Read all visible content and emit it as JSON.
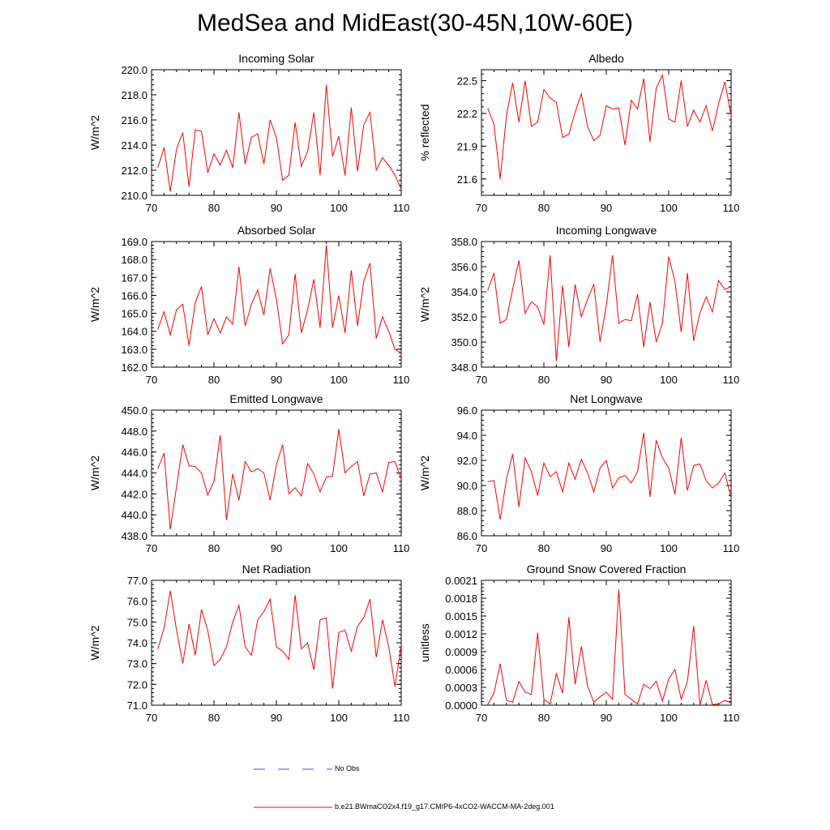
{
  "title": "MedSea and MidEast(30-45N,10W-60E)",
  "legend": {
    "obs_label": "No Obs",
    "obs_color": "#4b4bc8",
    "model_label": "b.e21.BWmaCO2x4.f19_g17.CMIP6-4xCO2-WACCM-MA-2deg.001",
    "model_color": "#ff0000"
  },
  "chart_data": [
    {
      "type": "line",
      "title": "Incoming Solar",
      "ylabel": "W/m^2",
      "xlim": [
        70,
        110
      ],
      "ylim": [
        210,
        220
      ],
      "xticks": [
        70,
        80,
        90,
        100,
        110
      ],
      "xtick_labels": [
        "70",
        "80",
        "90",
        "100",
        "110"
      ],
      "yticks": [
        210,
        212,
        214,
        216,
        218,
        220
      ],
      "ytick_labels": [
        "210.0",
        "212.0",
        "214.0",
        "216.0",
        "218.0",
        "220.0"
      ],
      "x": [
        71,
        72,
        73,
        74,
        75,
        76,
        77,
        78,
        79,
        80,
        81,
        82,
        83,
        84,
        85,
        86,
        87,
        88,
        89,
        90,
        91,
        92,
        93,
        94,
        95,
        96,
        97,
        98,
        99,
        100,
        101,
        102,
        103,
        104,
        105,
        106,
        107,
        108,
        109,
        110
      ],
      "values": [
        212.2,
        213.8,
        210.3,
        213.7,
        215.0,
        210.7,
        215.2,
        215.1,
        211.8,
        213.3,
        212.4,
        213.6,
        212.2,
        216.6,
        212.5,
        214.6,
        214.9,
        212.5,
        216.0,
        214.6,
        211.2,
        211.6,
        215.8,
        212.3,
        213.5,
        216.6,
        211.6,
        218.8,
        213.1,
        214.7,
        211.6,
        217.0,
        211.9,
        215.6,
        216.6,
        212.0,
        213.0,
        212.4,
        211.6,
        210.5
      ]
    },
    {
      "type": "line",
      "title": "Albedo",
      "ylabel": "% reflected",
      "xlim": [
        70,
        110
      ],
      "ylim": [
        21.45,
        22.6
      ],
      "xticks": [
        70,
        80,
        90,
        100,
        110
      ],
      "xtick_labels": [
        "70",
        "80",
        "90",
        "100",
        "110"
      ],
      "yticks": [
        21.6,
        21.9,
        22.2,
        22.5
      ],
      "ytick_labels": [
        "21.6",
        "21.9",
        "22.2",
        "22.5"
      ],
      "x": [
        71,
        72,
        73,
        74,
        75,
        76,
        77,
        78,
        79,
        80,
        81,
        82,
        83,
        84,
        85,
        86,
        87,
        88,
        89,
        90,
        91,
        92,
        93,
        94,
        95,
        96,
        97,
        98,
        99,
        100,
        101,
        102,
        103,
        104,
        105,
        106,
        107,
        108,
        109,
        110
      ],
      "values": [
        22.25,
        22.1,
        21.6,
        22.18,
        22.48,
        22.12,
        22.5,
        22.08,
        22.12,
        22.42,
        22.34,
        22.3,
        21.98,
        22.01,
        22.21,
        22.38,
        22.08,
        21.95,
        22.0,
        22.27,
        22.24,
        22.25,
        21.91,
        22.32,
        22.24,
        22.52,
        21.94,
        22.43,
        22.55,
        22.15,
        22.12,
        22.5,
        22.08,
        22.23,
        22.12,
        22.27,
        22.04,
        22.29,
        22.49,
        22.18
      ]
    },
    {
      "type": "line",
      "title": "Absorbed Solar",
      "ylabel": "W/m^2",
      "xlim": [
        70,
        110
      ],
      "ylim": [
        162,
        169
      ],
      "xticks": [
        70,
        80,
        90,
        100,
        110
      ],
      "xtick_labels": [
        "70",
        "80",
        "90",
        "100",
        "110"
      ],
      "yticks": [
        162,
        163,
        164,
        165,
        166,
        167,
        168,
        169
      ],
      "ytick_labels": [
        "162.0",
        "163.0",
        "164.0",
        "165.0",
        "166.0",
        "167.0",
        "168.0",
        "169.0"
      ],
      "x": [
        71,
        72,
        73,
        74,
        75,
        76,
        77,
        78,
        79,
        80,
        81,
        82,
        83,
        84,
        85,
        86,
        87,
        88,
        89,
        90,
        91,
        92,
        93,
        94,
        95,
        96,
        97,
        98,
        99,
        100,
        101,
        102,
        103,
        104,
        105,
        106,
        107,
        108,
        109,
        110
      ],
      "values": [
        164.1,
        165.1,
        163.8,
        165.2,
        165.5,
        163.2,
        165.6,
        166.5,
        163.8,
        164.7,
        163.9,
        164.8,
        164.4,
        167.6,
        164.3,
        165.5,
        166.3,
        164.9,
        167.5,
        165.8,
        163.3,
        163.8,
        167.2,
        163.9,
        165.2,
        166.9,
        164.2,
        168.8,
        164.2,
        166.0,
        163.9,
        167.4,
        164.3,
        166.8,
        167.8,
        163.6,
        164.8,
        164.0,
        163.0,
        162.8
      ]
    },
    {
      "type": "line",
      "title": "Incoming Longwave",
      "ylabel": "W/m^2",
      "xlim": [
        70,
        110
      ],
      "ylim": [
        348,
        358
      ],
      "xticks": [
        70,
        80,
        90,
        100,
        110
      ],
      "xtick_labels": [
        "70",
        "80",
        "90",
        "100",
        "110"
      ],
      "yticks": [
        348,
        350,
        352,
        354,
        356,
        358
      ],
      "ytick_labels": [
        "348.0",
        "350.0",
        "352.0",
        "354.0",
        "356.0",
        "358.0"
      ],
      "x": [
        71,
        72,
        73,
        74,
        75,
        76,
        77,
        78,
        79,
        80,
        81,
        82,
        83,
        84,
        85,
        86,
        87,
        88,
        89,
        90,
        91,
        92,
        93,
        94,
        95,
        96,
        97,
        98,
        99,
        100,
        101,
        102,
        103,
        104,
        105,
        106,
        107,
        108,
        109,
        110
      ],
      "values": [
        354.1,
        355.5,
        351.5,
        351.8,
        354.2,
        356.5,
        352.3,
        353.2,
        352.8,
        351.4,
        356.9,
        348.5,
        354.5,
        349.6,
        354.6,
        352.0,
        353.4,
        354.6,
        350.0,
        352.9,
        356.9,
        351.5,
        351.8,
        351.7,
        353.8,
        349.6,
        353.2,
        350.0,
        351.5,
        356.8,
        354.8,
        350.8,
        355.5,
        350.1,
        352.3,
        353.6,
        352.4,
        354.9,
        354.2,
        354.4
      ]
    },
    {
      "type": "line",
      "title": "Emitted Longwave",
      "ylabel": "W/m^2",
      "xlim": [
        70,
        110
      ],
      "ylim": [
        438,
        450
      ],
      "xticks": [
        70,
        80,
        90,
        100,
        110
      ],
      "xtick_labels": [
        "70",
        "80",
        "90",
        "100",
        "110"
      ],
      "yticks": [
        438,
        440,
        442,
        444,
        446,
        448,
        450
      ],
      "ytick_labels": [
        "438.0",
        "440.0",
        "442.0",
        "444.0",
        "446.0",
        "448.0",
        "450.0"
      ],
      "x": [
        71,
        72,
        73,
        74,
        75,
        76,
        77,
        78,
        79,
        80,
        81,
        82,
        83,
        84,
        85,
        86,
        87,
        88,
        89,
        90,
        91,
        92,
        93,
        94,
        95,
        96,
        97,
        98,
        99,
        100,
        101,
        102,
        103,
        104,
        105,
        106,
        107,
        108,
        109,
        110
      ],
      "values": [
        444.4,
        445.9,
        438.6,
        442.7,
        446.7,
        444.7,
        444.6,
        444.0,
        441.9,
        443.2,
        447.6,
        439.5,
        443.9,
        441.4,
        445.1,
        444.1,
        444.4,
        444.0,
        441.4,
        444.8,
        446.7,
        442.0,
        442.6,
        441.8,
        444.9,
        443.9,
        442.2,
        443.6,
        443.7,
        448.2,
        444.0,
        444.6,
        445.1,
        441.8,
        443.9,
        444.0,
        442.2,
        445.0,
        445.1,
        443.4
      ]
    },
    {
      "type": "line",
      "title": "Net Longwave",
      "ylabel": "W/m^2",
      "xlim": [
        70,
        110
      ],
      "ylim": [
        86,
        96
      ],
      "xticks": [
        70,
        80,
        90,
        100,
        110
      ],
      "xtick_labels": [
        "70",
        "80",
        "90",
        "100",
        "110"
      ],
      "yticks": [
        86,
        88,
        90,
        92,
        94,
        96
      ],
      "ytick_labels": [
        "86.0",
        "88.0",
        "90.0",
        "92.0",
        "94.0",
        "96.0"
      ],
      "x": [
        71,
        72,
        73,
        74,
        75,
        76,
        77,
        78,
        79,
        80,
        81,
        82,
        83,
        84,
        85,
        86,
        87,
        88,
        89,
        90,
        91,
        92,
        93,
        94,
        95,
        96,
        97,
        98,
        99,
        100,
        101,
        102,
        103,
        104,
        105,
        106,
        107,
        108,
        109,
        110
      ],
      "values": [
        90.3,
        90.4,
        87.3,
        90.5,
        92.5,
        88.3,
        92.2,
        91.1,
        89.2,
        91.8,
        90.7,
        91.1,
        89.5,
        91.8,
        90.5,
        92.1,
        91.0,
        89.5,
        91.4,
        92.0,
        89.8,
        90.6,
        90.8,
        90.2,
        91.1,
        94.2,
        89.1,
        93.6,
        92.2,
        91.4,
        89.3,
        93.8,
        89.6,
        91.6,
        91.7,
        90.4,
        89.8,
        90.2,
        91.0,
        89.0
      ]
    },
    {
      "type": "line",
      "title": "Net Radiation",
      "ylabel": "W/m^2",
      "xlim": [
        70,
        110
      ],
      "ylim": [
        71,
        77
      ],
      "xticks": [
        70,
        80,
        90,
        100,
        110
      ],
      "xtick_labels": [
        "70",
        "80",
        "90",
        "100",
        "110"
      ],
      "yticks": [
        71,
        72,
        73,
        74,
        75,
        76,
        77
      ],
      "ytick_labels": [
        "71.0",
        "72.0",
        "73.0",
        "74.0",
        "75.0",
        "76.0",
        "77.0"
      ],
      "x": [
        71,
        72,
        73,
        74,
        75,
        76,
        77,
        78,
        79,
        80,
        81,
        82,
        83,
        84,
        85,
        86,
        87,
        88,
        89,
        90,
        91,
        92,
        93,
        94,
        95,
        96,
        97,
        98,
        99,
        100,
        101,
        102,
        103,
        104,
        105,
        106,
        107,
        108,
        109,
        110
      ],
      "values": [
        73.7,
        74.7,
        76.5,
        74.6,
        73.0,
        74.9,
        73.4,
        75.6,
        74.6,
        72.9,
        73.2,
        73.8,
        75.0,
        75.8,
        73.8,
        73.4,
        75.1,
        75.5,
        76.1,
        73.8,
        73.6,
        73.2,
        76.3,
        73.7,
        74.0,
        72.7,
        75.1,
        75.2,
        71.8,
        74.5,
        74.6,
        73.6,
        74.8,
        75.2,
        76.1,
        73.3,
        75.1,
        73.8,
        71.9,
        73.9
      ]
    },
    {
      "type": "line",
      "title": "Ground Snow Covered Fraction",
      "ylabel": "unitless",
      "xlim": [
        70,
        110
      ],
      "ylim": [
        0,
        0.0021
      ],
      "xticks": [
        70,
        80,
        90,
        100,
        110
      ],
      "xtick_labels": [
        "70",
        "80",
        "90",
        "100",
        "110"
      ],
      "yticks": [
        0,
        0.0003,
        0.0006,
        0.0009,
        0.0012,
        0.0015,
        0.0018,
        0.0021
      ],
      "ytick_labels": [
        "0.0000",
        "0.0003",
        "0.0006",
        "0.0009",
        "0.0012",
        "0.0015",
        "0.0018",
        "0.0021"
      ],
      "x": [
        71,
        72,
        73,
        74,
        75,
        76,
        77,
        78,
        79,
        80,
        81,
        82,
        83,
        84,
        85,
        86,
        87,
        88,
        89,
        90,
        91,
        92,
        93,
        94,
        95,
        96,
        97,
        98,
        99,
        100,
        101,
        102,
        103,
        104,
        105,
        106,
        107,
        108,
        109,
        110
      ],
      "values": [
        1e-05,
        0.0002,
        0.0007,
        8e-05,
        5e-05,
        0.0004,
        0.00022,
        0.00018,
        0.00122,
        0.0001,
        2e-05,
        0.00053,
        0.0002,
        0.00148,
        0.00035,
        0.00099,
        0.00032,
        5e-05,
        0.00014,
        0.00022,
        0.0001,
        0.00195,
        0.00018,
        0.0001,
        2e-05,
        0.00035,
        0.00028,
        0.0004,
        7e-05,
        0.00044,
        0.0006,
        0.0001,
        0.0004,
        0.00133,
        0.0,
        0.00042,
        1e-05,
        2e-05,
        8e-05,
        4e-05
      ]
    }
  ]
}
